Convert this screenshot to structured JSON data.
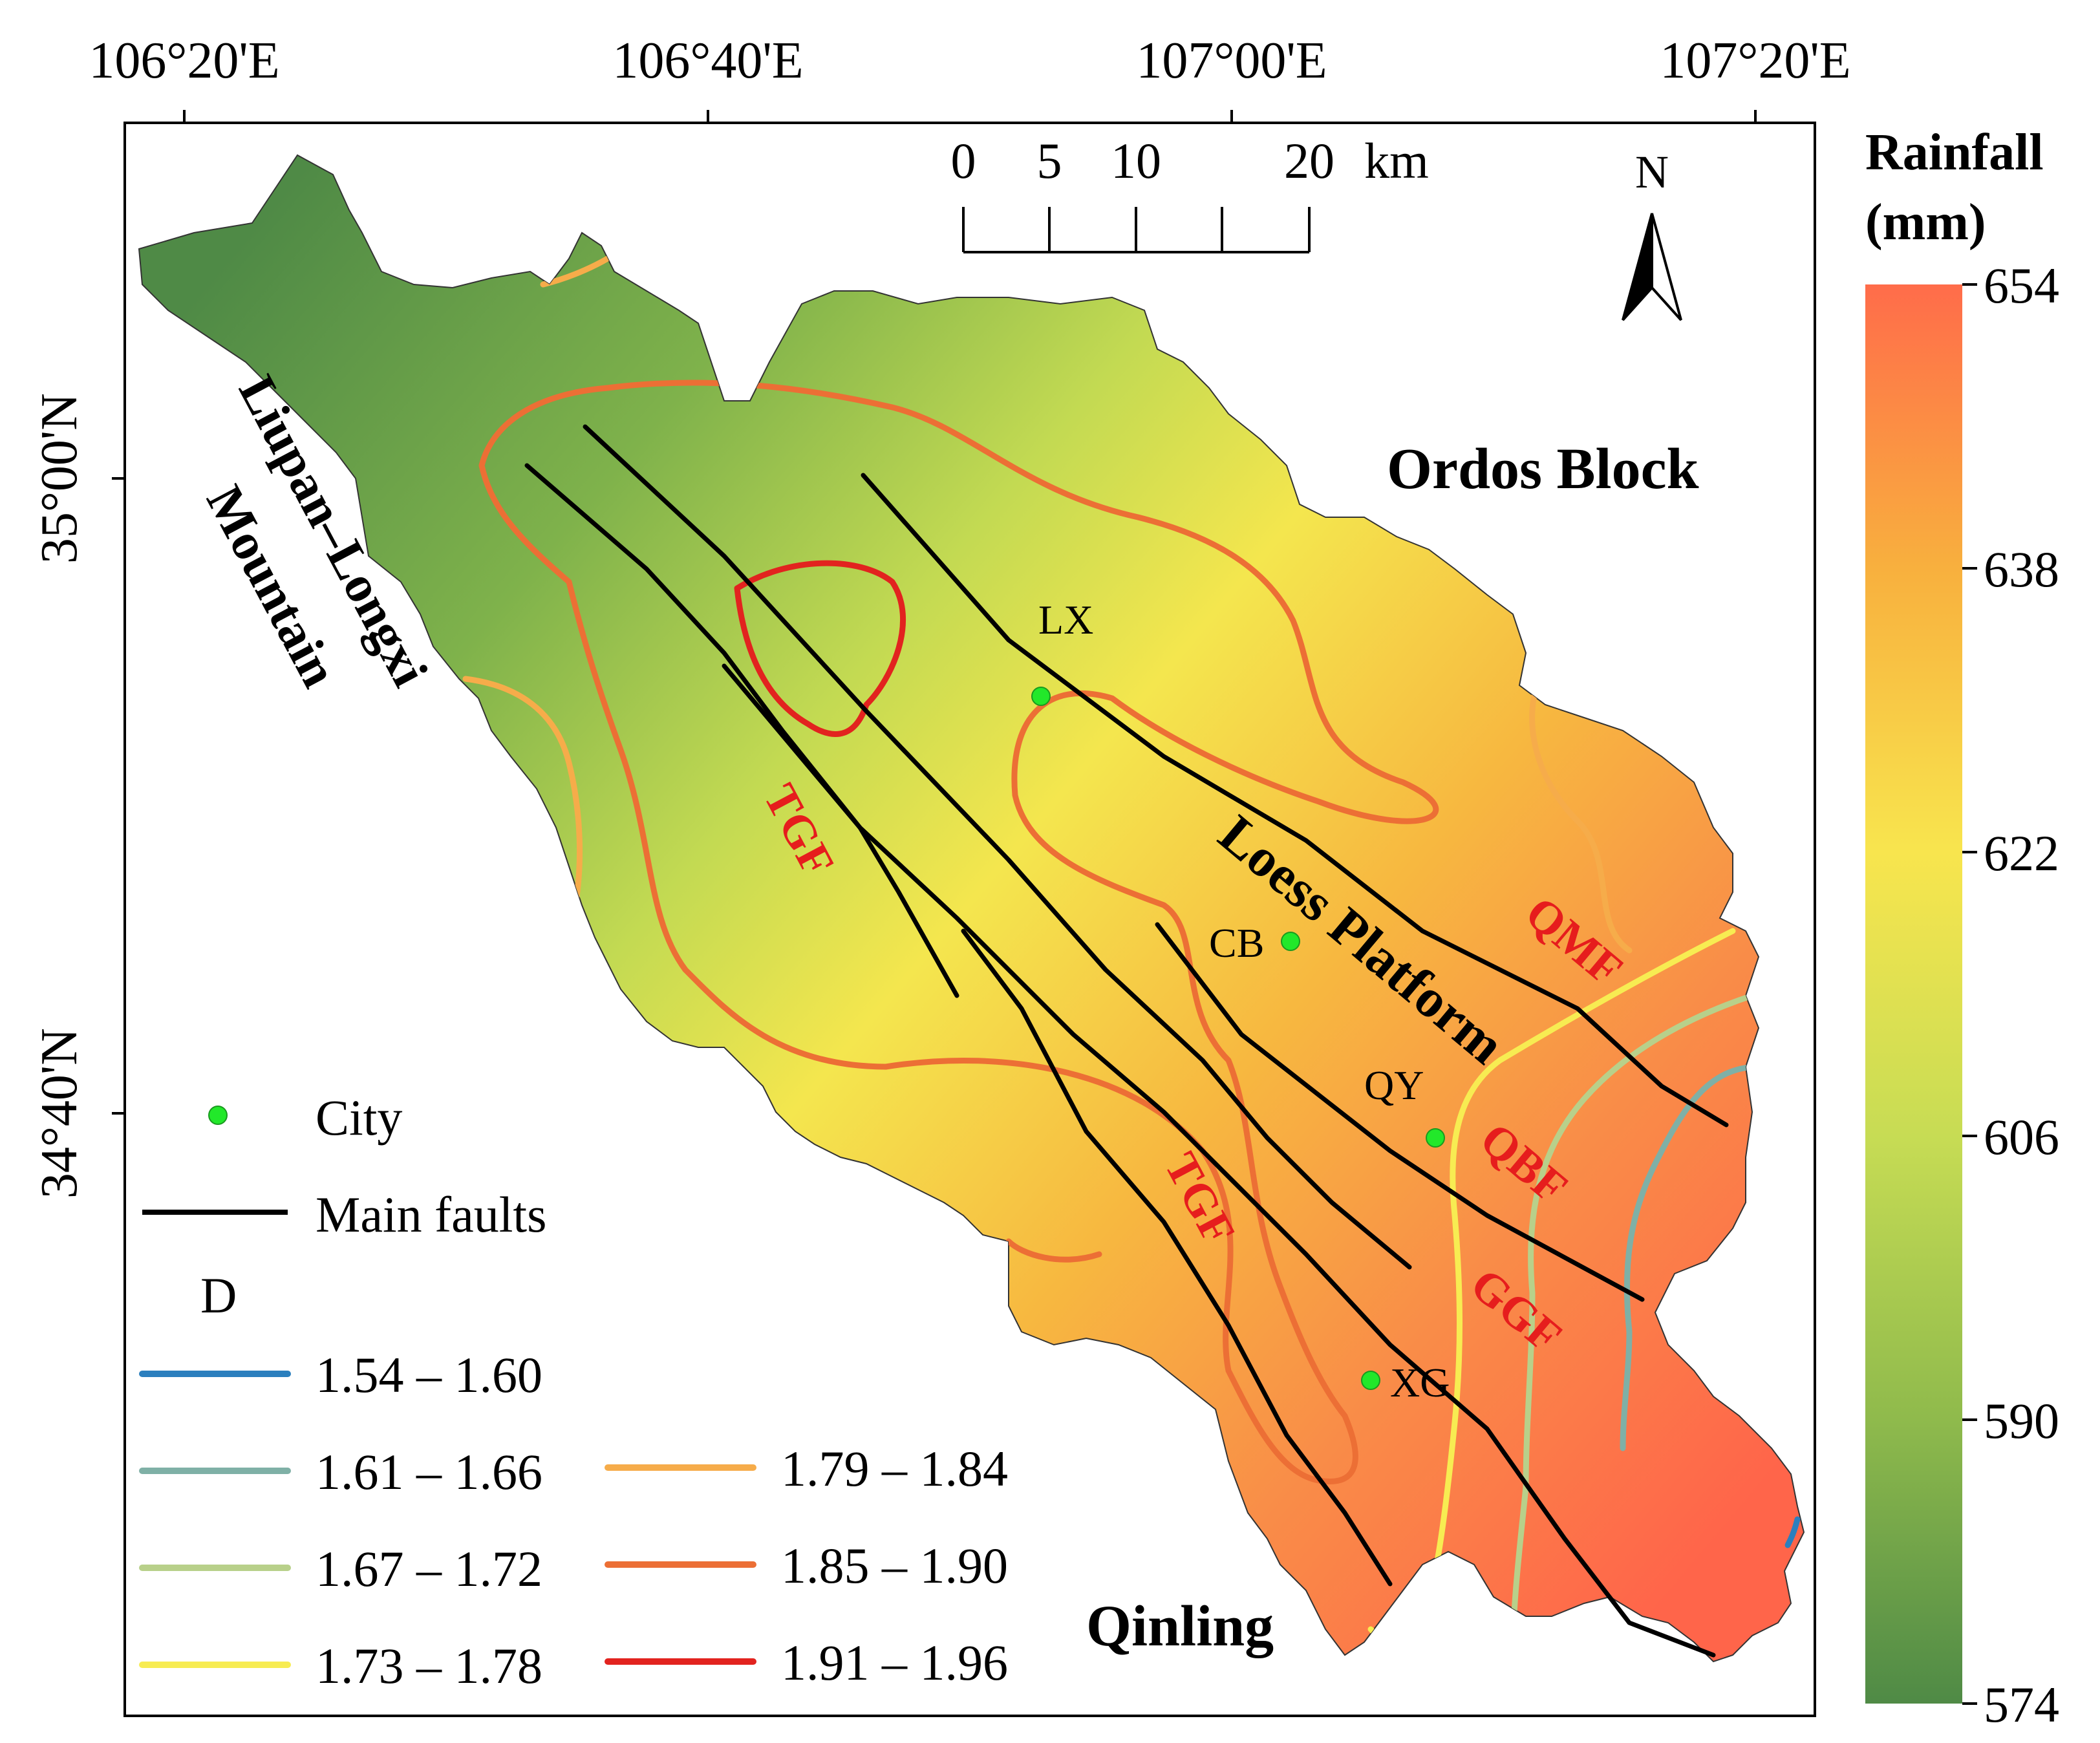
{
  "map": {
    "axes": {
      "top_lon_labels": [
        "106°20'E",
        "106°40'E",
        "107°00'E",
        "107°20'E"
      ],
      "left_lat_labels": [
        "35°00'N",
        "34°40'N"
      ]
    },
    "scale_bar": {
      "ticks": [
        "0",
        "5",
        "10",
        "20"
      ],
      "unit": "km"
    },
    "north_arrow": {
      "label": "N"
    },
    "regions": {
      "liupan_line1": "Liupan–Longxi",
      "liupan_line2": "Mountain",
      "ordos": "Ordos Block",
      "loess": "Loess Platform",
      "qinling": "Qinling"
    },
    "faults": [
      "TGF",
      "TGF",
      "QMF",
      "QBF",
      "GGF"
    ],
    "cities": [
      "LX",
      "CB",
      "QY",
      "XG"
    ],
    "legend": {
      "city_label": "City",
      "fault_label": "Main faults",
      "d_title": "D",
      "classes": [
        {
          "label": "1.54 – 1.60",
          "color": "#2b7fbe"
        },
        {
          "label": "1.61 – 1.66",
          "color": "#7fb0a6"
        },
        {
          "label": "1.67 – 1.72",
          "color": "#b8d08a"
        },
        {
          "label": "1.73 – 1.78",
          "color": "#f7ec52"
        },
        {
          "label": "1.79 – 1.84",
          "color": "#f6ac4a"
        },
        {
          "label": "1.85 – 1.90",
          "color": "#ec6f35"
        },
        {
          "label": "1.91 – 1.96",
          "color": "#e2231f"
        }
      ]
    },
    "colorbar": {
      "title_line1": "Rainfall",
      "title_line2": "(mm)",
      "ticks": [
        "654",
        "638",
        "622",
        "606",
        "590",
        "574"
      ],
      "min": 574,
      "max": 654,
      "colors": [
        "#ff6c4a",
        "#f8b03e",
        "#f8e54e",
        "#c7dc54",
        "#8fba4c",
        "#4f8a46"
      ]
    },
    "colors": {
      "city_dot": "#22e82a",
      "fault_line": "#000000",
      "fault_label": "#e61d1d"
    }
  }
}
